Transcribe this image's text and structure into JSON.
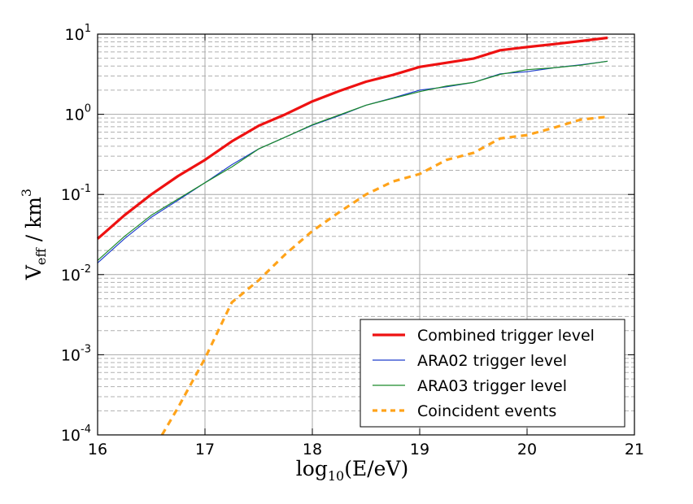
{
  "chart_data": {
    "type": "line",
    "title": "",
    "xlabel": {
      "base": "log",
      "sub": "10",
      "rest": "(E/eV)"
    },
    "ylabel": {
      "main": "V",
      "sub": "eff",
      "mid": " / km",
      "sup": "3"
    },
    "xlim": [
      16,
      21
    ],
    "ylim_exponent": [
      -4,
      1
    ],
    "y_scale": "log",
    "grid": true,
    "x_ticks": [
      "16",
      "17",
      "18",
      "19",
      "20",
      "21"
    ],
    "y_ticks": [
      {
        "base": "10",
        "exp": "-4"
      },
      {
        "base": "10",
        "exp": "-3"
      },
      {
        "base": "10",
        "exp": "-2"
      },
      {
        "base": "10",
        "exp": "-1"
      },
      {
        "base": "10",
        "exp": "0"
      },
      {
        "base": "10",
        "exp": "1"
      }
    ],
    "legend_position": "lower-right",
    "series": [
      {
        "name": "Combined trigger level",
        "color": "#ee1111",
        "style": "solid-thick",
        "x": [
          16.0,
          16.25,
          16.5,
          16.75,
          17.0,
          17.25,
          17.5,
          17.75,
          18.0,
          18.25,
          18.5,
          18.75,
          19.0,
          19.25,
          19.5,
          19.75,
          20.0,
          20.25,
          20.5,
          20.75
        ],
        "y": [
          0.028,
          0.055,
          0.1,
          0.17,
          0.27,
          0.46,
          0.72,
          1.0,
          1.45,
          1.95,
          2.55,
          3.1,
          3.9,
          4.4,
          4.95,
          6.3,
          6.9,
          7.5,
          8.2,
          9.0
        ]
      },
      {
        "name": "ARA02 trigger level",
        "color": "#1f3fcc",
        "style": "solid-thin",
        "x": [
          16.0,
          16.25,
          16.5,
          16.75,
          17.0,
          17.25,
          17.5,
          17.75,
          18.0,
          18.25,
          18.5,
          18.75,
          19.0,
          19.25,
          19.5,
          19.75,
          20.0,
          20.25,
          20.5,
          20.75
        ],
        "y": [
          0.014,
          0.028,
          0.052,
          0.085,
          0.14,
          0.235,
          0.37,
          0.52,
          0.73,
          0.96,
          1.3,
          1.6,
          2.0,
          2.2,
          2.5,
          3.2,
          3.4,
          3.8,
          4.15,
          4.6
        ]
      },
      {
        "name": "ARA03 trigger level",
        "color": "#1b8a2a",
        "style": "solid-thin",
        "x": [
          16.0,
          16.25,
          16.5,
          16.75,
          17.0,
          17.25,
          17.5,
          17.75,
          18.0,
          18.25,
          18.5,
          18.75,
          19.0,
          19.25,
          19.5,
          19.75,
          20.0,
          20.25,
          20.5,
          20.75
        ],
        "y": [
          0.015,
          0.03,
          0.055,
          0.088,
          0.14,
          0.22,
          0.37,
          0.52,
          0.74,
          0.98,
          1.3,
          1.58,
          1.92,
          2.25,
          2.5,
          3.15,
          3.6,
          3.8,
          4.1,
          4.6
        ]
      },
      {
        "name": "Coincident events",
        "color": "#ffa31a",
        "style": "dashed",
        "x": [
          16.6,
          16.75,
          17.0,
          17.25,
          17.5,
          17.75,
          18.0,
          18.25,
          18.5,
          18.75,
          19.0,
          19.25,
          19.5,
          19.75,
          20.0,
          20.25,
          20.5,
          20.75
        ],
        "y": [
          0.0001,
          0.00022,
          0.0009,
          0.0045,
          0.0085,
          0.018,
          0.035,
          0.06,
          0.1,
          0.145,
          0.18,
          0.27,
          0.33,
          0.5,
          0.55,
          0.68,
          0.86,
          0.93
        ]
      }
    ]
  }
}
